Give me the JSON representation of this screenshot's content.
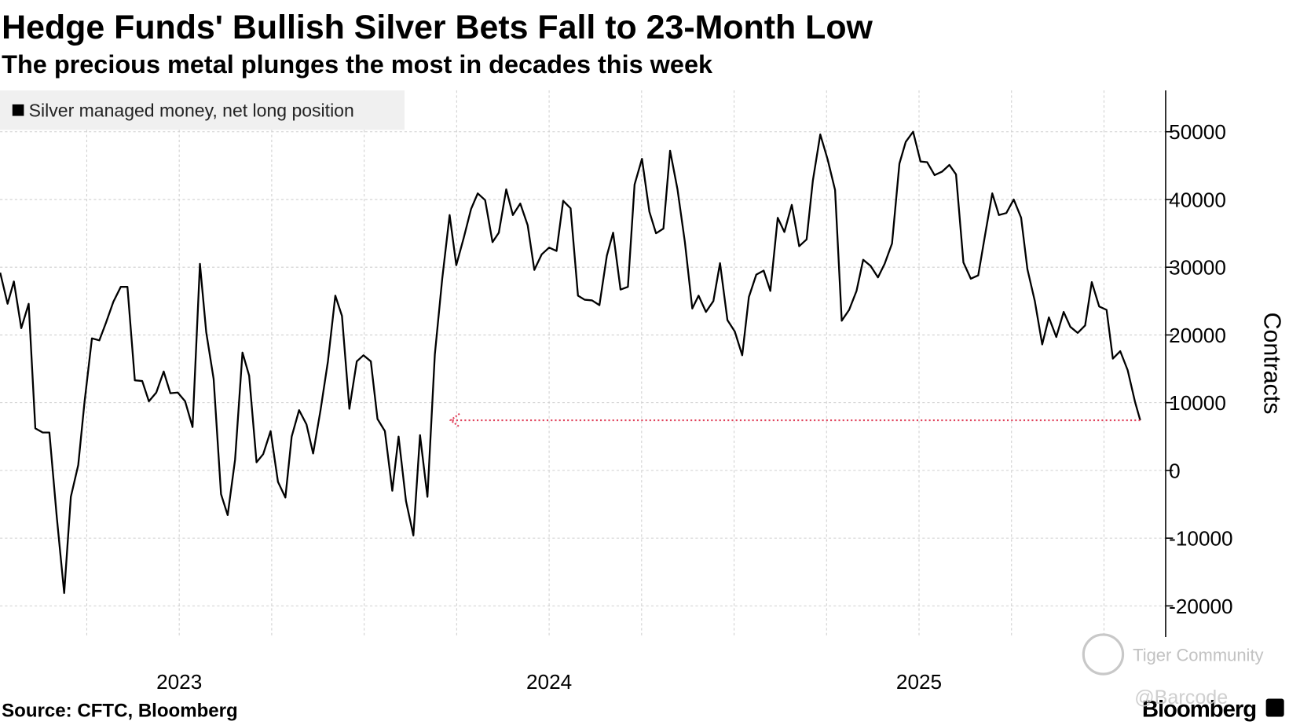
{
  "chart_data": {
    "type": "line",
    "title": "Hedge Funds' Bullish Silver Bets Fall to 23-Month Low",
    "subtitle": "The precious metal plunges the most in decades this week",
    "y_axis_label": "Contracts",
    "source": "Source: CFTC, Bloomberg",
    "brand": "Bloomberg",
    "watermark": "Tiger Community",
    "watermark_handle": "@Barcode",
    "legend_position": "top-left",
    "grid": true,
    "xlim": [
      2023.0156,
      2026.1667
    ],
    "ylim": [
      -24600,
      56100
    ],
    "yticks": [
      -20000,
      -10000,
      0,
      10000,
      20000,
      30000,
      40000,
      50000
    ],
    "xticks": [
      {
        "value": 2023.5,
        "label": "2023"
      },
      {
        "value": 2024.5,
        "label": "2024"
      },
      {
        "value": 2025.5,
        "label": "2025"
      }
    ],
    "xgrid": [
      2023.25,
      2023.5,
      2023.75,
      2024.0,
      2024.25,
      2024.5,
      2024.75,
      2025.0,
      2025.25,
      2025.5,
      2025.75,
      2026.0
    ],
    "x": [
      2023.016,
      2023.036,
      2023.053,
      2023.073,
      2023.093,
      2023.111,
      2023.131,
      2023.149,
      2023.169,
      2023.189,
      2023.207,
      2023.227,
      2023.244,
      2023.264,
      2023.284,
      2023.302,
      2023.322,
      2023.342,
      2023.36,
      2023.38,
      2023.4,
      2023.418,
      2023.438,
      2023.458,
      2023.476,
      2023.496,
      2023.516,
      2023.536,
      2023.556,
      2023.573,
      2023.593,
      2023.613,
      2023.631,
      2023.651,
      2023.671,
      2023.689,
      2023.709,
      2023.727,
      2023.747,
      2023.767,
      2023.787,
      2023.804,
      2023.824,
      2023.844,
      2023.862,
      2023.882,
      2023.902,
      2023.922,
      2023.94,
      2023.96,
      2023.98,
      2023.998,
      2024.018,
      2024.036,
      2024.056,
      2024.076,
      2024.093,
      2024.113,
      2024.133,
      2024.151,
      2024.171,
      2024.191,
      2024.211,
      2024.231,
      2024.249,
      2024.269,
      2024.289,
      2024.307,
      2024.327,
      2024.347,
      2024.364,
      2024.384,
      2024.402,
      2024.422,
      2024.442,
      2024.46,
      2024.48,
      2024.5,
      2024.52,
      2024.538,
      2024.558,
      2024.578,
      2024.596,
      2024.616,
      2024.636,
      2024.656,
      2024.673,
      2024.693,
      2024.713,
      2024.731,
      2024.751,
      2024.771,
      2024.789,
      2024.809,
      2024.827,
      2024.847,
      2024.867,
      2024.887,
      2024.904,
      2024.924,
      2024.944,
      2024.962,
      2024.982,
      2025.002,
      2025.022,
      2025.04,
      2025.06,
      2025.08,
      2025.098,
      2025.118,
      2025.136,
      2025.156,
      2025.176,
      2025.196,
      2025.213,
      2025.233,
      2025.253,
      2025.273,
      2025.291,
      2025.311,
      2025.331,
      2025.349,
      2025.369,
      2025.389,
      2025.407,
      2025.427,
      2025.447,
      2025.464,
      2025.484,
      2025.504,
      2025.522,
      2025.542,
      2025.562,
      2025.582,
      2025.6,
      2025.62,
      2025.64,
      2025.66,
      2025.678,
      2025.698,
      2025.716,
      2025.736,
      2025.756,
      2025.776,
      2025.793,
      2025.813,
      2025.833,
      2025.851,
      2025.871,
      2025.891,
      2025.909,
      2025.929,
      2025.949,
      2025.967,
      2025.987,
      2026.007,
      2026.024,
      2026.044,
      2026.064,
      2026.084,
      2026.098
    ],
    "series": [
      {
        "name": "Silver managed money, net long position",
        "color": "#000000",
        "values": [
          29200,
          24600,
          27900,
          21000,
          24600,
          6200,
          5600,
          5600,
          -6900,
          -18100,
          -3900,
          800,
          10100,
          19500,
          19200,
          21800,
          24900,
          27100,
          27100,
          13300,
          13200,
          10200,
          11500,
          14600,
          11400,
          11500,
          10200,
          6400,
          30500,
          20400,
          13500,
          -3500,
          -6600,
          1600,
          17400,
          14000,
          1200,
          2400,
          5800,
          -1700,
          -4000,
          5000,
          8900,
          6800,
          2500,
          8900,
          16100,
          25800,
          22800,
          9100,
          16100,
          17000,
          16100,
          7600,
          5800,
          -3000,
          5000,
          -4500,
          -9600,
          5200,
          -3900,
          17100,
          28300,
          37700,
          30300,
          34300,
          38600,
          40900,
          39900,
          33700,
          35100,
          41500,
          37700,
          39400,
          36200,
          29600,
          31900,
          32900,
          32400,
          39800,
          38700,
          25800,
          25200,
          25100,
          24400,
          31700,
          35100,
          26700,
          27100,
          42200,
          46000,
          38200,
          35000,
          35700,
          47200,
          41500,
          33700,
          23900,
          25800,
          23400,
          25000,
          30600,
          22200,
          20500,
          17000,
          25600,
          28900,
          29500,
          26500,
          37300,
          35200,
          39200,
          33100,
          34100,
          42800,
          49600,
          45900,
          41400,
          22100,
          23700,
          26500,
          31100,
          30200,
          28500,
          30500,
          33500,
          45300,
          48500,
          50000,
          45600,
          45500,
          43600,
          44100,
          45100,
          43700,
          30700,
          28300,
          28800,
          34600,
          40900,
          37700,
          38000,
          40000,
          37300,
          29700,
          25000,
          18600,
          22600,
          19700,
          23400,
          21200,
          20300,
          21400,
          27800,
          24200,
          23700,
          16500,
          17600,
          14800,
          10100,
          7400
        ]
      }
    ]
  }
}
